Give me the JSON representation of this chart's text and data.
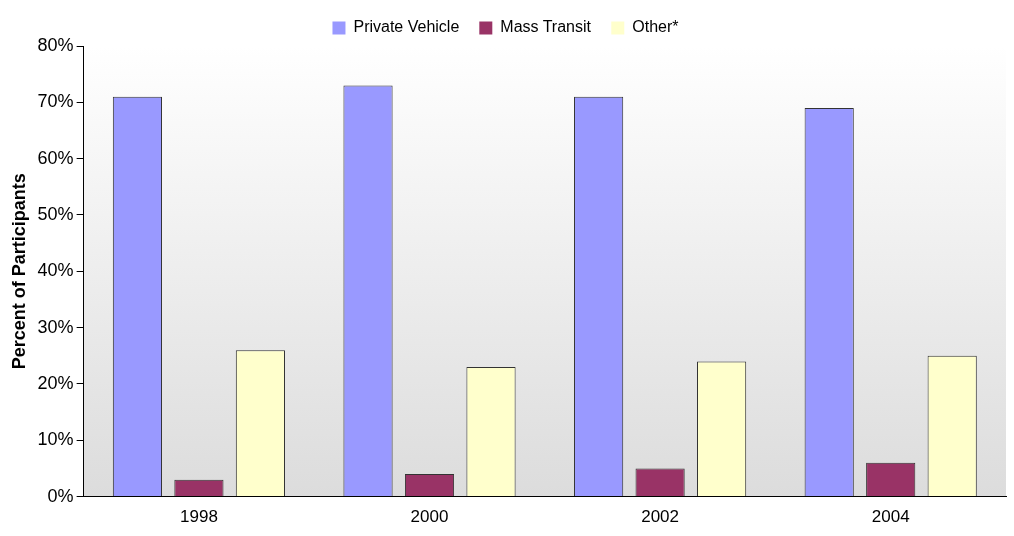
{
  "chart_data": {
    "type": "bar",
    "ylabel": "Percent of Participants",
    "categories": [
      "1998",
      "2000",
      "2002",
      "2004"
    ],
    "series": [
      {
        "name": "Private Vehicle",
        "color": "#9999ff",
        "values": [
          71,
          73,
          71,
          69
        ]
      },
      {
        "name": "Mass Transit",
        "color": "#993366",
        "values": [
          3,
          4,
          5,
          6
        ]
      },
      {
        "name": "Other*",
        "color": "#ffffcc",
        "values": [
          26,
          23,
          24,
          25
        ]
      }
    ],
    "ylim": [
      0,
      80
    ],
    "yticks": [
      {
        "value": 0,
        "label": "0%"
      },
      {
        "value": 10,
        "label": "10%"
      },
      {
        "value": 20,
        "label": "20%"
      },
      {
        "value": 30,
        "label": "30%"
      },
      {
        "value": 40,
        "label": "40%"
      },
      {
        "value": 50,
        "label": "50%"
      },
      {
        "value": 60,
        "label": "60%"
      },
      {
        "value": 70,
        "label": "70%"
      },
      {
        "value": 80,
        "label": "80%"
      }
    ],
    "grid": false,
    "legend": "top"
  }
}
